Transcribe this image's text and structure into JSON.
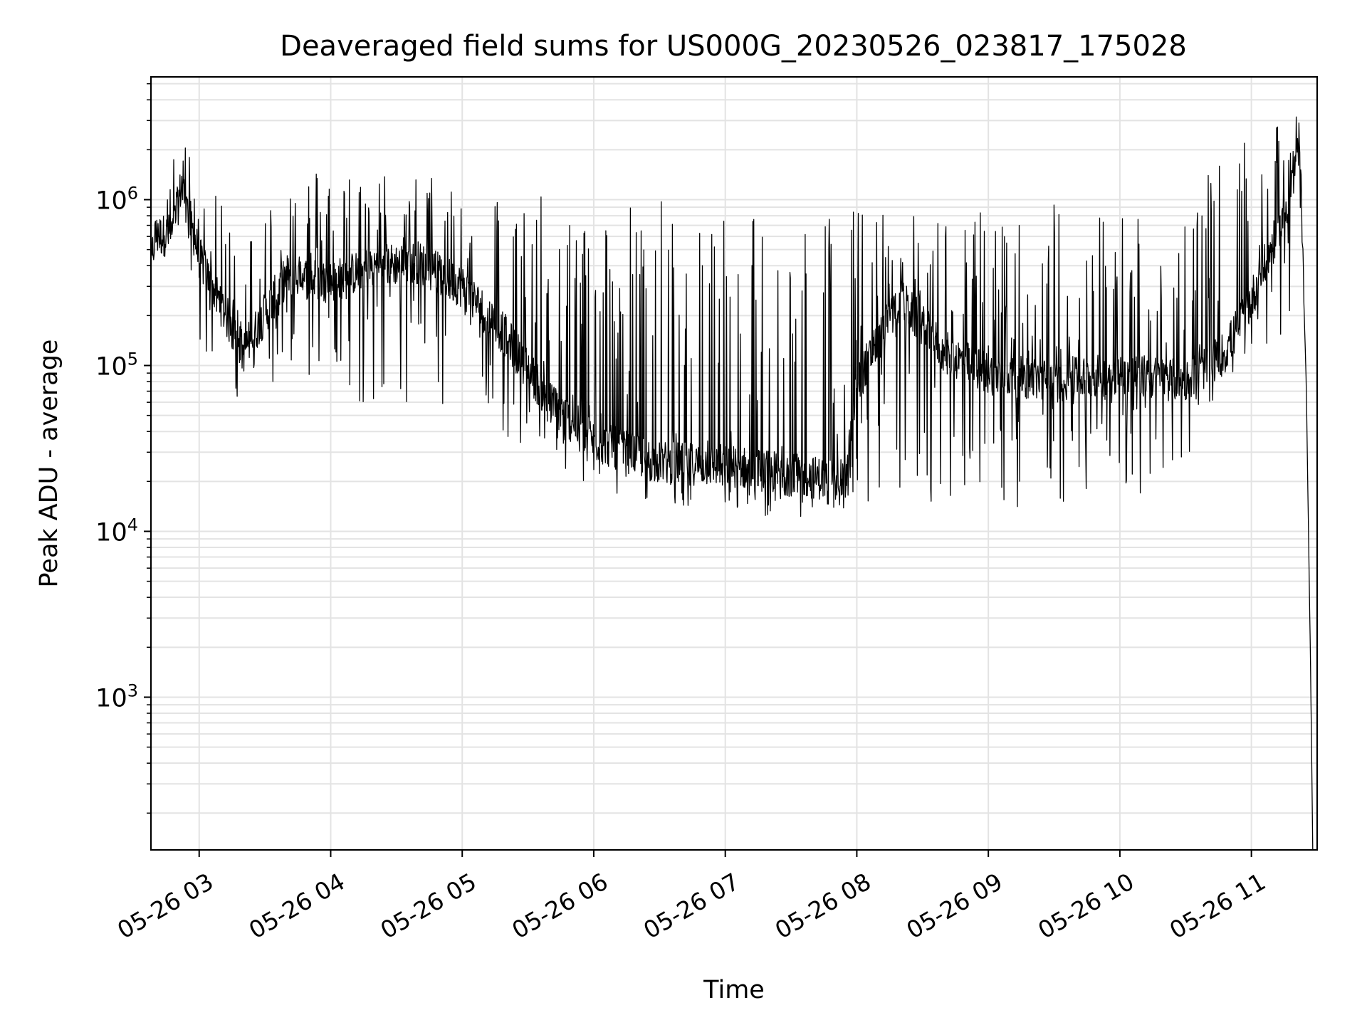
{
  "chart_data": {
    "type": "line",
    "title": "Deaveraged field sums for US000G_20230526_023817_175028",
    "xlabel": "Time",
    "ylabel": "Peak ADU - average",
    "yscale": "log",
    "ylim": [
      120,
      5500000
    ],
    "xlim": [
      "05-26 02:38",
      "05-26 11:30"
    ],
    "grid": true,
    "line_color": "#000000",
    "x_ticks": [
      "05-26 03",
      "05-26 04",
      "05-26 05",
      "05-26 06",
      "05-26 07",
      "05-26 08",
      "05-26 09",
      "05-26 10",
      "05-26 11"
    ],
    "y_ticks": [
      {
        "base": "10",
        "exp": "3"
      },
      {
        "base": "10",
        "exp": "4"
      },
      {
        "base": "10",
        "exp": "5"
      },
      {
        "base": "10",
        "exp": "6"
      }
    ],
    "series": [
      {
        "baseline_points": [
          {
            "x": "05-26 02:38",
            "y": 420000
          },
          {
            "x": "05-26 02:40",
            "y": 600000
          },
          {
            "x": "05-26 02:48",
            "y": 620000
          },
          {
            "x": "05-26 02:52",
            "y": 1250000
          },
          {
            "x": "05-26 03:00",
            "y": 450000
          },
          {
            "x": "05-26 03:20",
            "y": 120000
          },
          {
            "x": "05-26 03:40",
            "y": 350000
          },
          {
            "x": "05-26 04:00",
            "y": 320000
          },
          {
            "x": "05-26 04:20",
            "y": 400000
          },
          {
            "x": "05-26 04:40",
            "y": 420000
          },
          {
            "x": "05-26 05:00",
            "y": 300000
          },
          {
            "x": "05-26 05:20",
            "y": 150000
          },
          {
            "x": "05-26 05:40",
            "y": 60000
          },
          {
            "x": "05-26 06:00",
            "y": 35000
          },
          {
            "x": "05-26 06:30",
            "y": 26000
          },
          {
            "x": "05-26 07:00",
            "y": 25000
          },
          {
            "x": "05-26 07:30",
            "y": 22000
          },
          {
            "x": "05-26 07:55",
            "y": 20000
          },
          {
            "x": "05-26 08:00",
            "y": 80000
          },
          {
            "x": "05-26 08:20",
            "y": 250000
          },
          {
            "x": "05-26 08:40",
            "y": 120000
          },
          {
            "x": "05-26 09:00",
            "y": 90000
          },
          {
            "x": "05-26 09:30",
            "y": 80000
          },
          {
            "x": "05-26 10:00",
            "y": 90000
          },
          {
            "x": "05-26 10:30",
            "y": 80000
          },
          {
            "x": "05-26 10:48",
            "y": 120000
          },
          {
            "x": "05-26 11:00",
            "y": 250000
          },
          {
            "x": "05-26 11:15",
            "y": 800000
          },
          {
            "x": "05-26 11:22",
            "y": 1900000
          },
          {
            "x": "05-26 11:25",
            "y": 80000
          },
          {
            "x": "05-26 11:27",
            "y": 1500
          },
          {
            "x": "05-26 11:28",
            "y": 120
          }
        ],
        "noise_envelope": [
          {
            "x": "05-26 02:38",
            "low": 450000,
            "high": 800000
          },
          {
            "x": "05-26 02:52",
            "low": 800000,
            "high": 2500000
          },
          {
            "x": "05-26 03:00",
            "low": 130000,
            "high": 1500000
          },
          {
            "x": "05-26 03:20",
            "low": 45000,
            "high": 600000
          },
          {
            "x": "05-26 03:40",
            "low": 80000,
            "high": 1700000
          },
          {
            "x": "05-26 04:00",
            "low": 60000,
            "high": 1600000
          },
          {
            "x": "05-26 04:30",
            "low": 55000,
            "high": 1500000
          },
          {
            "x": "05-26 05:00",
            "low": 60000,
            "high": 1400000
          },
          {
            "x": "05-26 05:30",
            "low": 30000,
            "high": 1100000
          },
          {
            "x": "05-26 06:00",
            "low": 17000,
            "high": 1000000
          },
          {
            "x": "05-26 06:30",
            "low": 15000,
            "high": 1050000
          },
          {
            "x": "05-26 07:00",
            "low": 13000,
            "high": 1050000
          },
          {
            "x": "05-26 07:30",
            "low": 12000,
            "high": 950000
          },
          {
            "x": "05-26 08:00",
            "low": 14000,
            "high": 950000
          },
          {
            "x": "05-26 08:30",
            "low": 15000,
            "high": 800000
          },
          {
            "x": "05-26 09:00",
            "low": 14000,
            "high": 900000
          },
          {
            "x": "05-26 09:30",
            "low": 14000,
            "high": 1000000
          },
          {
            "x": "05-26 10:00",
            "low": 16000,
            "high": 950000
          },
          {
            "x": "05-26 10:30",
            "low": 18000,
            "high": 950000
          },
          {
            "x": "05-26 10:48",
            "low": 80000,
            "high": 1900000
          },
          {
            "x": "05-26 11:22",
            "low": 100000,
            "high": 3300000
          }
        ]
      }
    ]
  }
}
